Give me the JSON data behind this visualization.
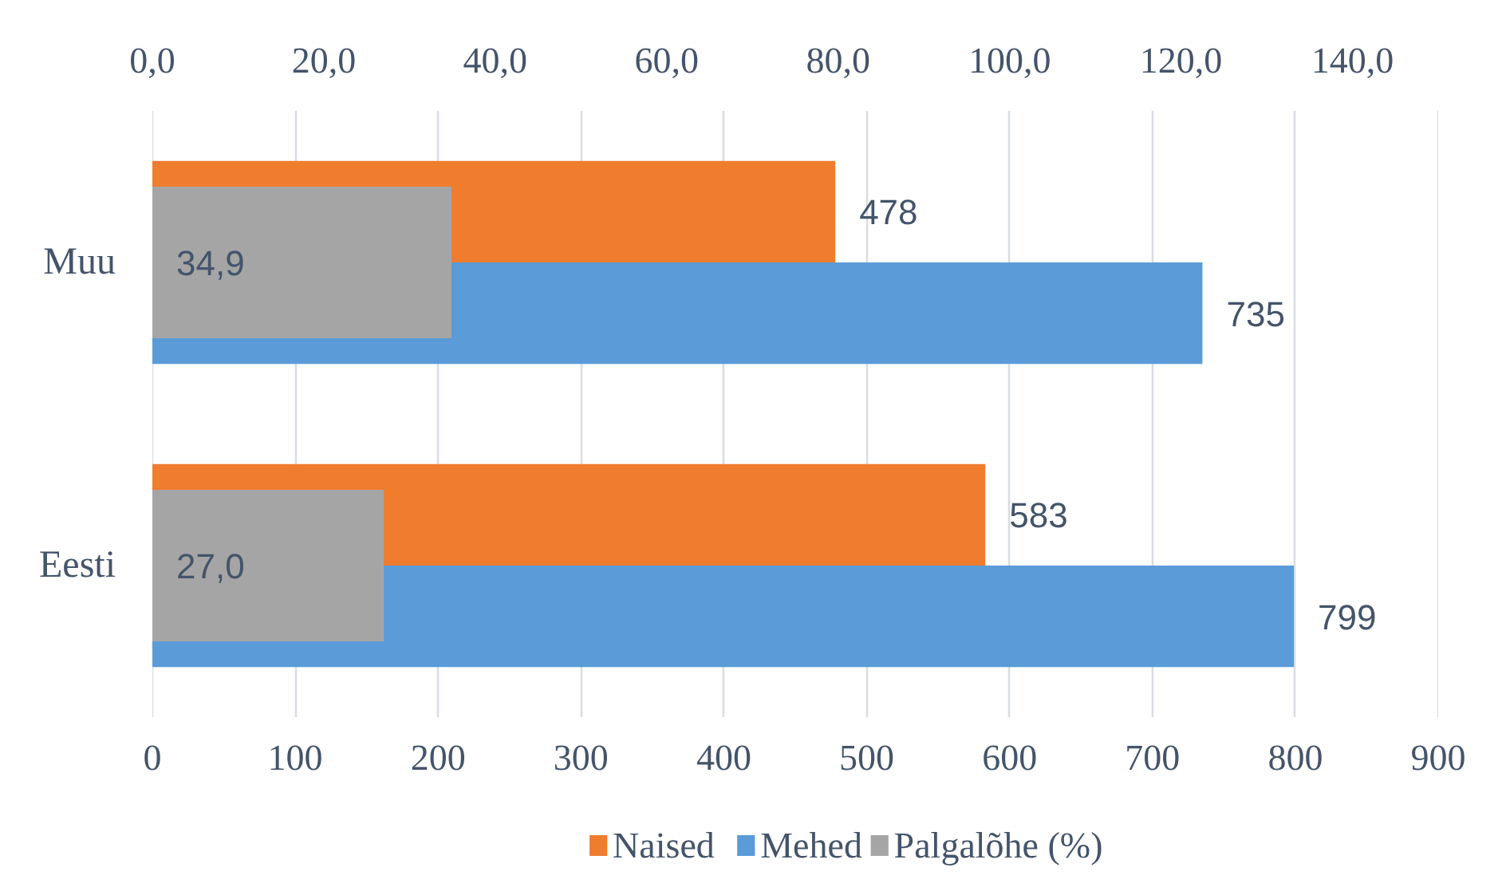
{
  "chart_data": {
    "type": "bar",
    "orientation": "horizontal",
    "categories": [
      "Muu",
      "Eesti"
    ],
    "series": [
      {
        "name": "Naised",
        "color": "#f07c2e",
        "values": [
          478,
          583
        ],
        "value_labels": [
          "478",
          "583"
        ]
      },
      {
        "name": "Mehed",
        "color": "#5a9bd8",
        "values": [
          735,
          799
        ],
        "value_labels": [
          "735",
          "799"
        ]
      },
      {
        "name": "Palgalõhe (%)",
        "color": "#a5a5a5",
        "values": [
          34.9,
          27.0
        ],
        "value_labels": [
          "34,9",
          "27,0"
        ],
        "axis": "x2"
      }
    ],
    "xlim": [
      0,
      900
    ],
    "xticks": [
      0,
      100,
      200,
      300,
      400,
      500,
      600,
      700,
      800,
      900
    ],
    "x2lim": [
      0,
      150
    ],
    "x2ticks": [
      {
        "value": 0,
        "label": "0,0"
      },
      {
        "value": 20,
        "label": "20,0"
      },
      {
        "value": 40,
        "label": "40,0"
      },
      {
        "value": 60,
        "label": "60,0"
      },
      {
        "value": 80,
        "label": "80,0"
      },
      {
        "value": 100,
        "label": "100,0"
      },
      {
        "value": 120,
        "label": "120,0"
      },
      {
        "value": 140,
        "label": "140,0"
      }
    ],
    "grid": "x",
    "legend": "bottom"
  }
}
